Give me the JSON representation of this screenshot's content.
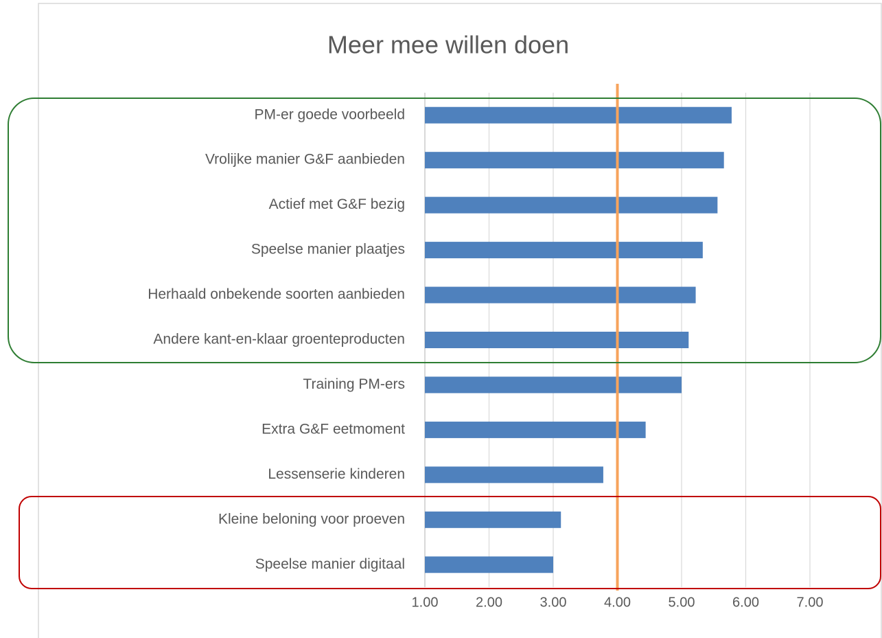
{
  "chart_data": {
    "type": "barh",
    "title": "Meer mee willen doen",
    "categories": [
      "PM-er goede voorbeeld",
      "Vrolijke manier G&F aanbieden",
      "Actief met G&F bezig",
      "Speelse manier plaatjes",
      "Herhaald onbekende soorten aanbieden",
      "Andere kant-en-klaar groenteproducten",
      "Training PM-ers",
      "Extra G&F eetmoment",
      "Lessenserie kinderen",
      "Kleine beloning voor proeven",
      "Speelse manier digitaal"
    ],
    "values": [
      5.78,
      5.66,
      5.56,
      5.33,
      5.22,
      5.11,
      5.0,
      4.44,
      3.78,
      3.12,
      3.0
    ],
    "color": "#4f81bd",
    "xlim": [
      1,
      7
    ],
    "xticks": [
      {
        "value": 1,
        "label": "1.00"
      },
      {
        "value": 2,
        "label": "2.00"
      },
      {
        "value": 3,
        "label": "3.00"
      },
      {
        "value": 4,
        "label": "4.00"
      },
      {
        "value": 5,
        "label": "5.00"
      },
      {
        "value": 6,
        "label": "6.00"
      },
      {
        "value": 7,
        "label": "7.00"
      }
    ],
    "grid": true,
    "reference_line": {
      "value": 4,
      "color": "#f7a35c"
    }
  }
}
